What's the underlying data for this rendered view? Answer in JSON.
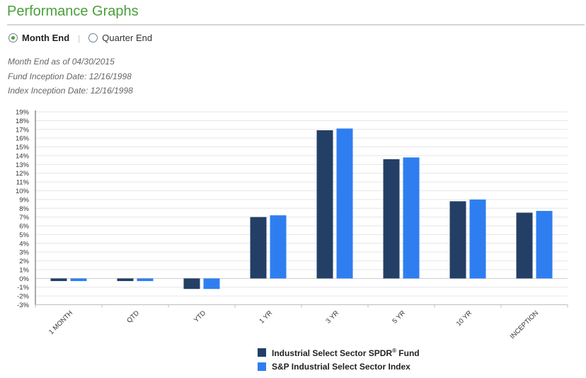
{
  "header": {
    "title": "Performance Graphs"
  },
  "period_toggle": {
    "options": [
      {
        "label": "Month End",
        "selected": true
      },
      {
        "label": "Quarter End",
        "selected": false
      }
    ],
    "separator": "|"
  },
  "info": {
    "as_of": "Month End as of 04/30/2015",
    "fund_inception": "Fund Inception Date: 12/16/1998",
    "index_inception": "Index Inception Date: 12/16/1998"
  },
  "legend": {
    "fund_label": "Industrial Select Sector SPDR",
    "fund_mark": "®",
    "fund_suffix": " Fund",
    "index_label": "S&P Industrial Select Sector Index"
  },
  "chart_data": {
    "type": "bar",
    "categories": [
      "1 MONTH",
      "QTD",
      "YTD",
      "1 YR",
      "3 YR",
      "5 YR",
      "10 YR",
      "INCEPTION"
    ],
    "series": [
      {
        "name": "Industrial Select Sector SPDR® Fund",
        "color": "#233f66",
        "values": [
          -0.3,
          -0.3,
          -1.2,
          7.0,
          16.9,
          13.6,
          8.8,
          7.5
        ]
      },
      {
        "name": "S&P Industrial Select Sector Index",
        "color": "#2f7ef0",
        "values": [
          -0.3,
          -0.3,
          -1.2,
          7.2,
          17.1,
          13.8,
          9.0,
          7.7
        ]
      }
    ],
    "ylim": [
      -3,
      19
    ],
    "yticks": [
      "-3%",
      "-2%",
      "-1%",
      "0%",
      "1%",
      "2%",
      "3%",
      "4%",
      "5%",
      "6%",
      "7%",
      "8%",
      "9%",
      "10%",
      "11%",
      "12%",
      "13%",
      "14%",
      "15%",
      "16%",
      "17%",
      "18%",
      "19%"
    ],
    "grid": true,
    "legend_position": "bottom-center"
  }
}
